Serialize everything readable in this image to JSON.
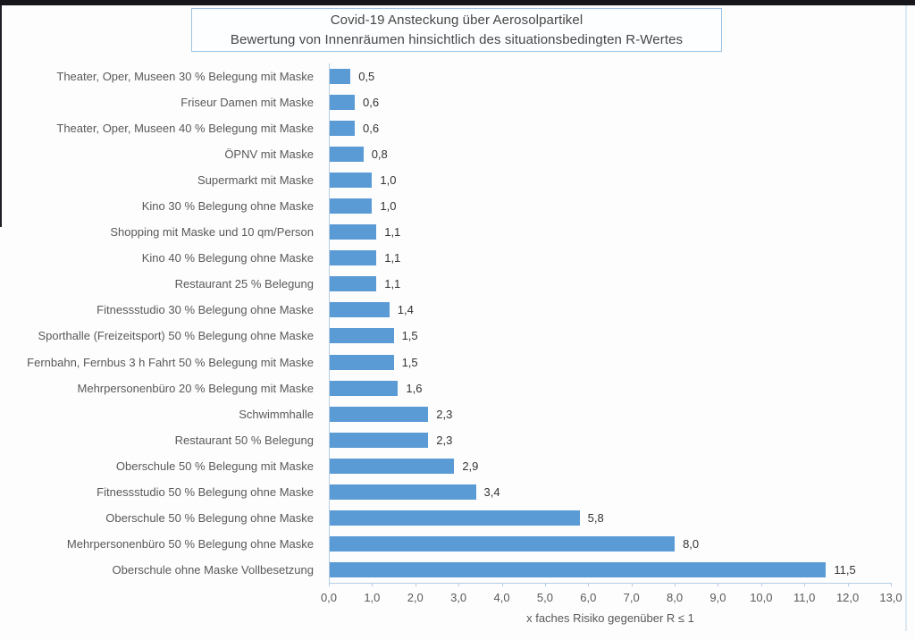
{
  "frame": {
    "top_strip_color": "#17171b",
    "background": "#fdfdfe"
  },
  "chart_data": {
    "type": "bar",
    "orientation": "horizontal",
    "title_line1": "Covid-19 Ansteckung über Aerosolpartikel",
    "title_line2": "Bewertung von Innenräumen hinsichtlich des situationsbedingten R-Wertes",
    "categories": [
      "Theater, Oper, Museen 30 % Belegung mit Maske",
      "Friseur Damen mit Maske",
      "Theater, Oper, Museen 40 % Belegung mit Maske",
      "ÖPNV mit Maske",
      "Supermarkt mit Maske",
      "Kino 30 % Belegung ohne Maske",
      "Shopping mit Maske und 10 qm/Person",
      "Kino 40 % Belegung ohne Maske",
      "Restaurant 25 % Belegung",
      "Fitnessstudio 30 % Belegung ohne Maske",
      "Sporthalle (Freizeitsport) 50 % Belegung ohne Maske",
      "Fernbahn, Fernbus 3 h Fahrt 50 % Belegung mit Maske",
      "Mehrpersonenbüro 20 % Belegung mit Maske",
      "Schwimmhalle",
      "Restaurant 50 % Belegung",
      "Oberschule 50 % Belegung mit Maske",
      "Fitnessstudio 50 % Belegung ohne Maske",
      "Oberschule 50 % Belegung ohne Maske",
      "Mehrpersonenbüro 50 % Belegung ohne Maske",
      "Oberschule ohne Maske Vollbesetzung"
    ],
    "values": [
      0.5,
      0.6,
      0.6,
      0.8,
      1.0,
      1.0,
      1.1,
      1.1,
      1.1,
      1.4,
      1.5,
      1.5,
      1.6,
      2.3,
      2.3,
      2.9,
      3.4,
      5.8,
      8.0,
      11.5
    ],
    "value_labels": [
      "0,5",
      "0,6",
      "0,6",
      "0,8",
      "1,0",
      "1,0",
      "1,1",
      "1,1",
      "1,1",
      "1,4",
      "1,5",
      "1,5",
      "1,6",
      "2,3",
      "2,3",
      "2,9",
      "3,4",
      "5,8",
      "8,0",
      "11,5"
    ],
    "xlabel": "x faches Risiko gegenüber R ≤ 1",
    "xlim": [
      0,
      13
    ],
    "xtick_labels": [
      "0,0",
      "1,0",
      "2,0",
      "3,0",
      "4,0",
      "5,0",
      "6,0",
      "7,0",
      "8,0",
      "9,0",
      "10,0",
      "11,0",
      "12,0",
      "13,0"
    ],
    "grid": false,
    "legend": false,
    "bar_color": "#5b9bd5",
    "axis_color": "#b5cde3",
    "label_color": "#595959",
    "value_label_color": "#333333",
    "title_border_color": "#9dc3e6"
  }
}
